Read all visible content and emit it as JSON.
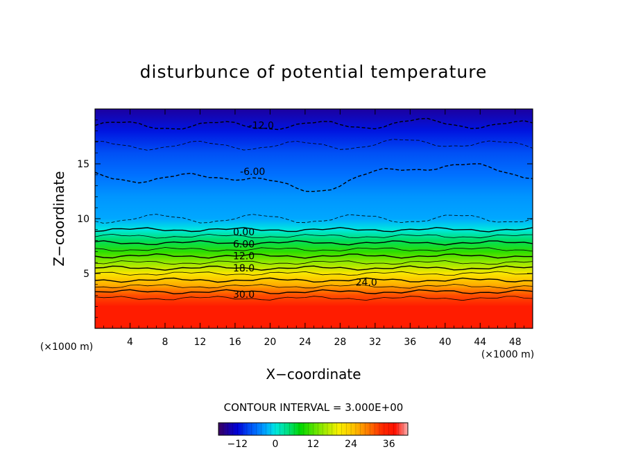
{
  "chart_data": {
    "type": "heatmap",
    "title": "disturbunce of potential temperature",
    "xlabel": "X−coordinate",
    "ylabel": "Z−coordinate",
    "x_unit": "(×1000 m)",
    "y_unit": "(×1000 m)",
    "xlim": [
      0,
      50
    ],
    "ylim": [
      0,
      20
    ],
    "x_ticks": [
      4,
      8,
      12,
      16,
      20,
      24,
      28,
      32,
      36,
      40,
      44,
      48
    ],
    "y_ticks": [
      5,
      10,
      15
    ],
    "contour_interval_text": "CONTOUR INTERVAL = 3.000E+00",
    "contour_labels": [
      {
        "text": "-12.0",
        "x": 19,
        "z": 18.5
      },
      {
        "text": "-6.00",
        "x": 18,
        "z": 14.3
      },
      {
        "text": "0.00",
        "x": 17,
        "z": 8.8
      },
      {
        "text": "6.00",
        "x": 17,
        "z": 7.7
      },
      {
        "text": "12.0",
        "x": 17,
        "z": 6.6
      },
      {
        "text": "18.0",
        "x": 17,
        "z": 5.5
      },
      {
        "text": "24.0",
        "x": 31,
        "z": 4.2
      },
      {
        "text": "30.0",
        "x": 17,
        "z": 3.1
      }
    ],
    "profile": [
      {
        "z": 0,
        "value": 36
      },
      {
        "z": 2,
        "value": 36
      },
      {
        "z": 3,
        "value": 32
      },
      {
        "z": 4,
        "value": 26
      },
      {
        "z": 5,
        "value": 21
      },
      {
        "z": 6,
        "value": 15
      },
      {
        "z": 7,
        "value": 10
      },
      {
        "z": 8,
        "value": 5
      },
      {
        "z": 9,
        "value": 0
      },
      {
        "z": 10,
        "value": -3
      },
      {
        "z": 12,
        "value": -4
      },
      {
        "z": 14,
        "value": -6
      },
      {
        "z": 16,
        "value": -8
      },
      {
        "z": 18,
        "value": -11
      },
      {
        "z": 20,
        "value": -15
      }
    ],
    "colorbar": {
      "range": [
        -18,
        42
      ],
      "ticks": [
        -12,
        0,
        12,
        24,
        36
      ],
      "tick_labels": [
        "−12",
        "0",
        "12",
        "24",
        "36"
      ]
    },
    "colors": {
      "cold": "#0000d8",
      "mid_blue": "#00a8ff",
      "cyan": "#00e8e0",
      "green": "#00d800",
      "yellow": "#f8f000",
      "orange": "#ff8000",
      "red": "#ff1800"
    }
  }
}
